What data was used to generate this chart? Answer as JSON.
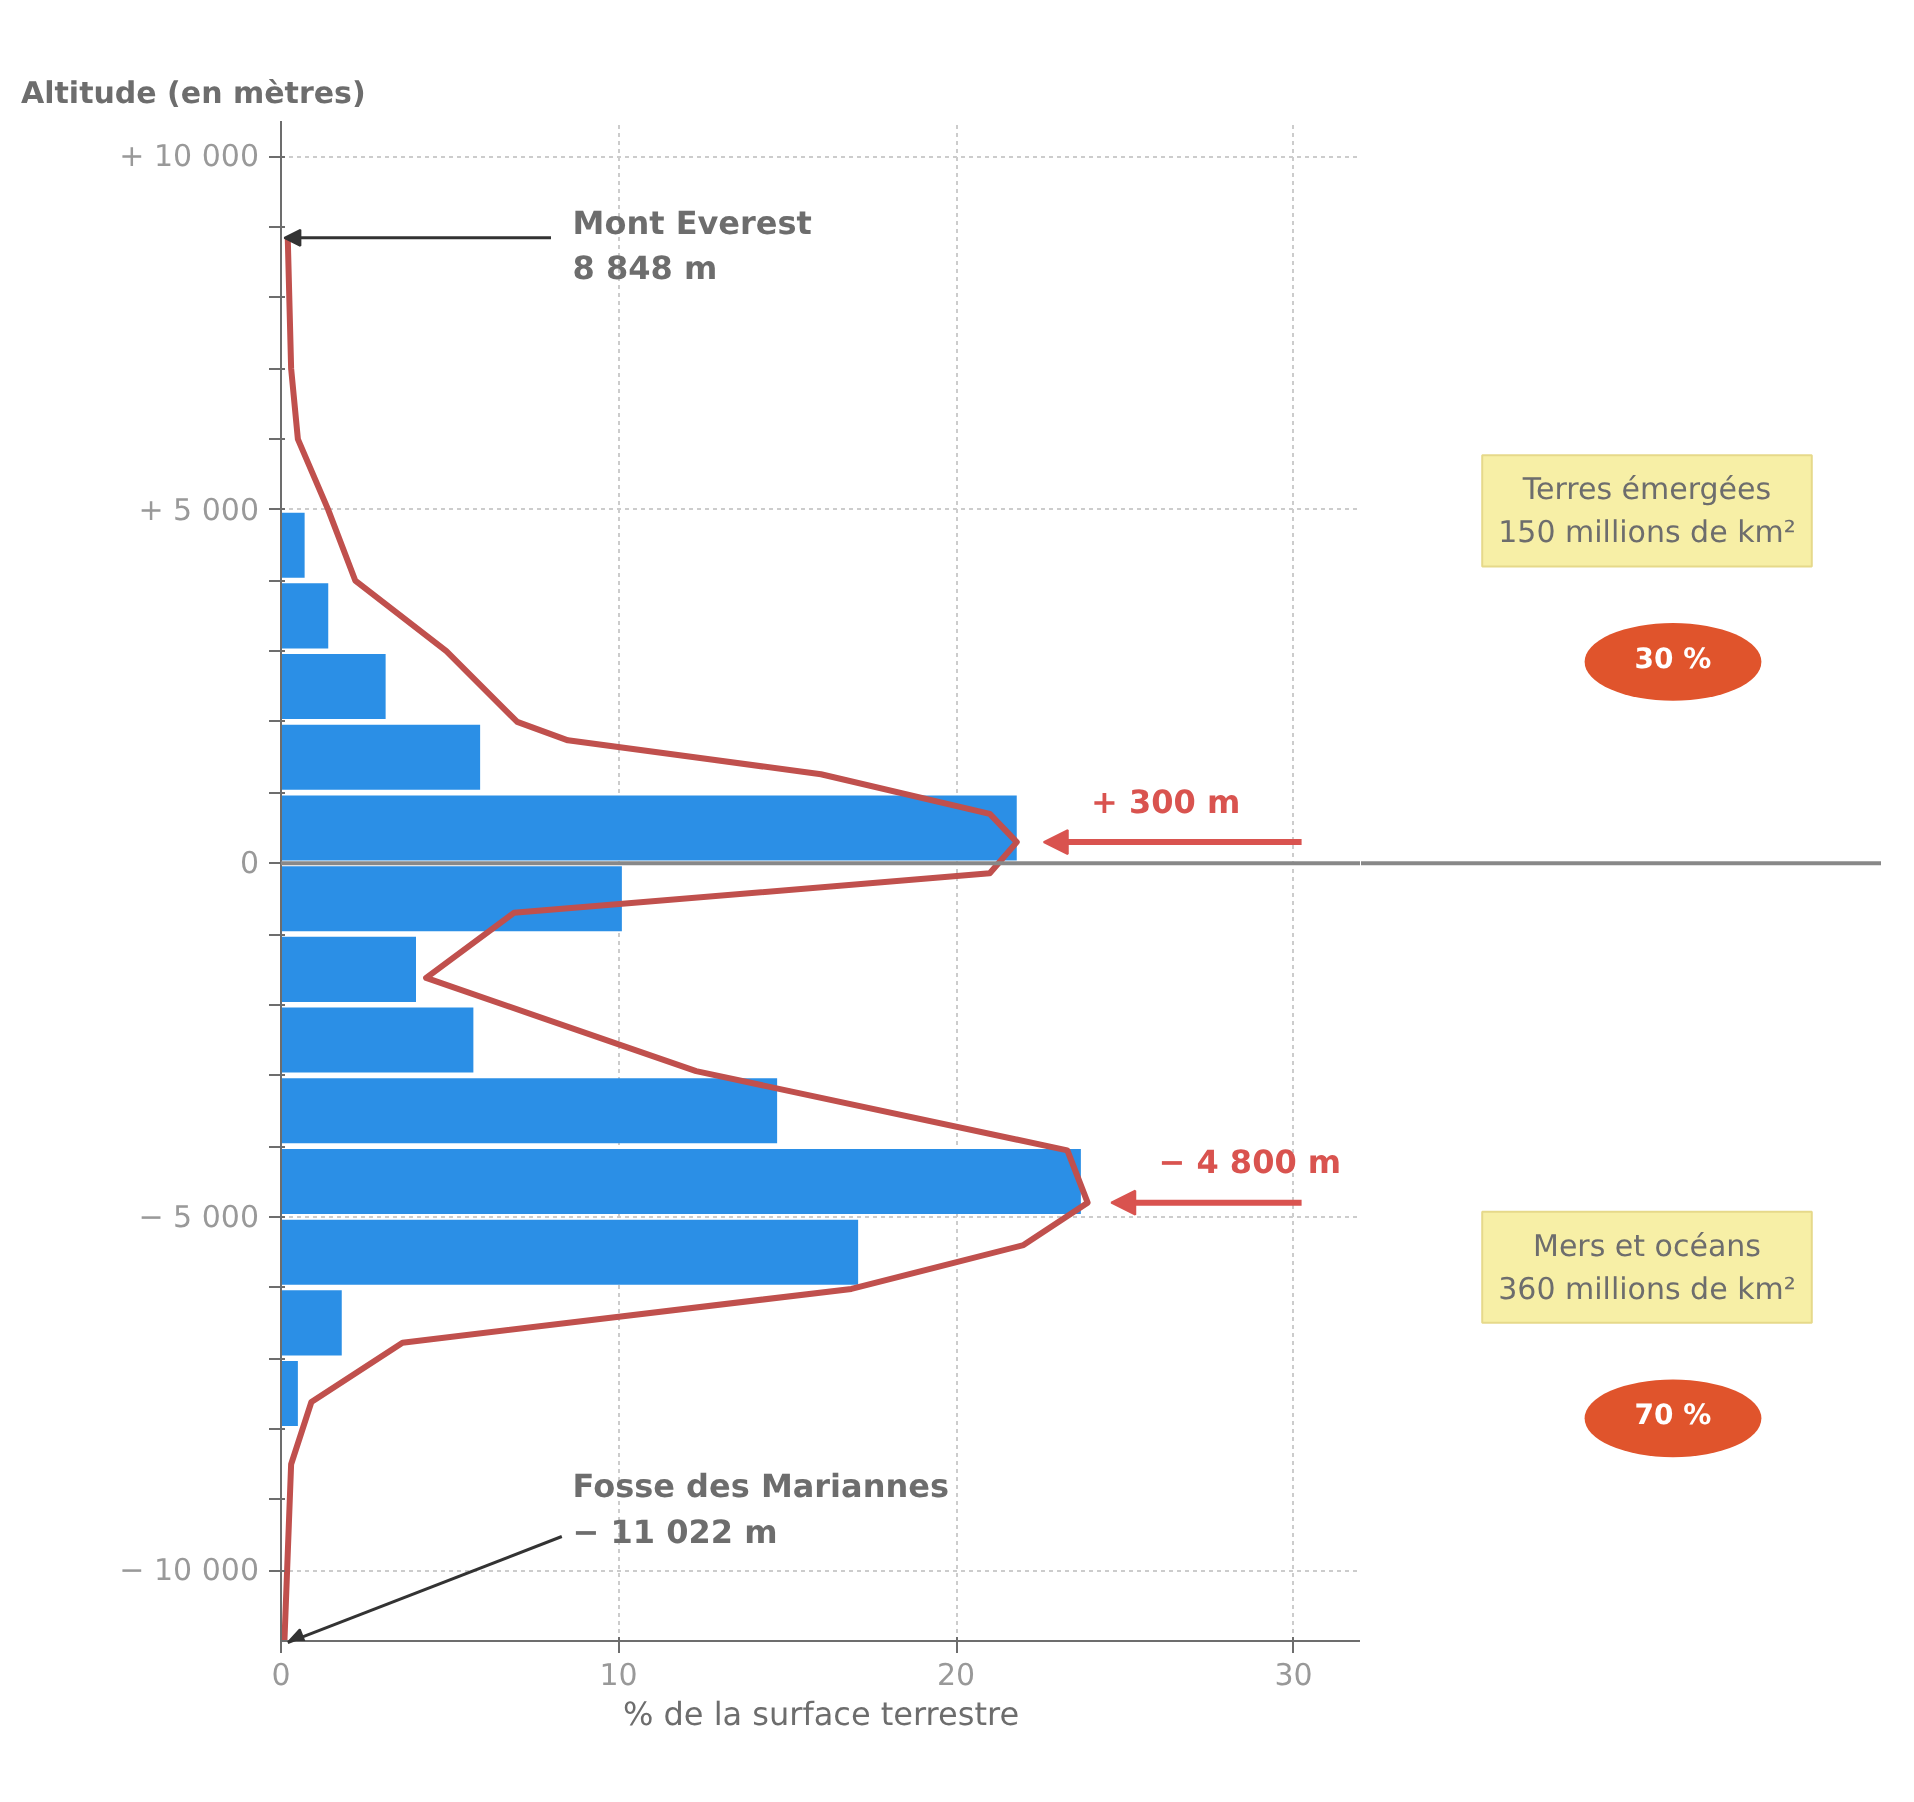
{
  "chart_data": {
    "type": "histogram",
    "orientation": "horizontal",
    "ylabel": "Altitude (en mètres)",
    "xlabel": "% de la surface terrestre",
    "bins": [
      -8000,
      -7000,
      -6000,
      -5000,
      -4000,
      -3000,
      -2000,
      -1000,
      0,
      1000,
      2000,
      3000,
      4000,
      5000
    ],
    "values": [
      0.5,
      1.8,
      17.1,
      23.7,
      14.7,
      5.7,
      4.0,
      10.1,
      21.8,
      5.9,
      3.1,
      1.4,
      0.7
    ],
    "color": "#2b8fe6",
    "series": [
      {
        "type": "line",
        "color": "#c0504d",
        "x": [
          8848,
          7000,
          6000,
          5000,
          4000,
          3000,
          2000,
          1740,
          1260,
          700,
          300,
          -140,
          -700,
          -1620,
          -2940,
          -4060,
          -4800,
          -5400,
          -6020,
          -6780,
          -7620,
          -8500,
          -11022
        ],
        "values": [
          0.2,
          0.3,
          0.5,
          1.4,
          2.2,
          4.9,
          7,
          8.5,
          16,
          21,
          21.8,
          21,
          6.9,
          4.3,
          12.3,
          23.3,
          23.9,
          22,
          16.9,
          3.6,
          0.9,
          0.3,
          0.1
        ]
      }
    ],
    "xlim": [
      0,
      32
    ],
    "ylim": [
      -11000,
      10500
    ],
    "xticks": [
      0,
      10,
      20,
      30
    ],
    "yticks": [
      {
        "value": 10000,
        "label": "+ 10 000"
      },
      {
        "value": 9000,
        "label": null
      },
      {
        "value": 8000,
        "label": null
      },
      {
        "value": 7000,
        "label": null
      },
      {
        "value": 6000,
        "label": null
      },
      {
        "value": 5000,
        "label": "+ 5 000"
      },
      {
        "value": 4000,
        "label": null
      },
      {
        "value": 3000,
        "label": null
      },
      {
        "value": 2000,
        "label": null
      },
      {
        "value": 1000,
        "label": null
      },
      {
        "value": 0,
        "label": "0"
      },
      {
        "value": -1000,
        "label": null
      },
      {
        "value": -2000,
        "label": null
      },
      {
        "value": -3000,
        "label": null
      },
      {
        "value": -4000,
        "label": null
      },
      {
        "value": -5000,
        "label": "− 5 000"
      },
      {
        "value": -6000,
        "label": null
      },
      {
        "value": -7000,
        "label": null
      },
      {
        "value": -8000,
        "label": null
      },
      {
        "value": -9000,
        "label": null
      },
      {
        "value": -10000,
        "label": "− 10 000"
      }
    ],
    "grid": true,
    "ref_lines": [
      {
        "axis": "y",
        "value": 0,
        "color": "#888888"
      }
    ],
    "annotations": [
      {
        "text": "Mont Everest\n8 848 m",
        "x": 0,
        "y": 8848
      },
      {
        "text": "+ 300 m",
        "x": 22,
        "y": 300
      },
      {
        "text": "− 4 800 m",
        "x": 24,
        "y": -4800
      },
      {
        "text": "Fosse des Mariannes\n− 11 022 m",
        "x": 0,
        "y": -11022
      },
      "Terres émergées\n150 millions de km²",
      "30 %",
      "Mers et océans\n360 millions de km²",
      "70 %"
    ]
  }
}
